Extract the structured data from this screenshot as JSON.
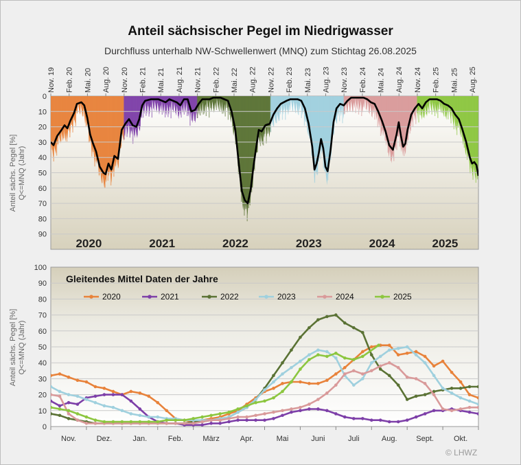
{
  "title": "Anteil sächsischer Pegel im Niedrigwasser",
  "subtitle": "Durchfluss unterhalb NW-Schwellenwert (MNQ) zum Stichtag 26.08.2025",
  "credit": "© LHWZ",
  "colors": {
    "2020": "#e8823a",
    "2021": "#7d3fa8",
    "2022": "#5a7234",
    "2023": "#9fd0de",
    "2024": "#d99a9a",
    "2025": "#8cc63f",
    "history_line": "#000000",
    "hint": "#aaaaaa"
  },
  "chart_data": [
    {
      "type": "area",
      "name": "history",
      "ylabel": "Anteil sächs. Pegel [%]\nQ<=MNQ (Jahr)",
      "yticks": [
        "0",
        "10",
        "20",
        "30",
        "40",
        "50",
        "60",
        "70",
        "80",
        "90"
      ],
      "ylim": [
        0,
        100
      ],
      "y_inverted": true,
      "xlim": [
        2019.833,
        2025.667
      ],
      "xtick_labels": [
        "Nov. 19",
        "Feb. 20",
        "Mai. 20",
        "Aug. 20",
        "Nov. 20",
        "Feb. 21",
        "Mai. 21",
        "Aug. 21",
        "Nov. 21",
        "Feb. 22",
        "Mai. 22",
        "Aug. 22",
        "Nov. 22",
        "Feb. 23",
        "Mai. 23",
        "Aug. 23",
        "Nov. 23",
        "Feb. 24",
        "Mai. 24",
        "Aug. 24",
        "Nov. 24",
        "Feb. 25",
        "Mai. 25",
        "Aug. 25"
      ],
      "year_bands": [
        {
          "year": "2020",
          "start": 2019.833,
          "end": 2020.833
        },
        {
          "year": "2021",
          "start": 2020.833,
          "end": 2021.833
        },
        {
          "year": "2022",
          "start": 2021.833,
          "end": 2022.833
        },
        {
          "year": "2023",
          "start": 2022.833,
          "end": 2023.833
        },
        {
          "year": "2024",
          "start": 2023.833,
          "end": 2024.833
        },
        {
          "year": "2025",
          "start": 2024.833,
          "end": 2025.667
        }
      ],
      "year_labels": [
        "2020",
        "2021",
        "2022",
        "2023",
        "2024",
        "2025"
      ],
      "line_points": [
        [
          2019.833,
          30
        ],
        [
          2019.87,
          32
        ],
        [
          2019.92,
          26
        ],
        [
          2019.98,
          22
        ],
        [
          2020.02,
          19
        ],
        [
          2020.06,
          21
        ],
        [
          2020.1,
          16
        ],
        [
          2020.15,
          11
        ],
        [
          2020.19,
          5
        ],
        [
          2020.25,
          4
        ],
        [
          2020.29,
          6
        ],
        [
          2020.33,
          14
        ],
        [
          2020.37,
          25
        ],
        [
          2020.41,
          31
        ],
        [
          2020.45,
          36
        ],
        [
          2020.5,
          46
        ],
        [
          2020.55,
          50
        ],
        [
          2020.58,
          51
        ],
        [
          2020.62,
          44
        ],
        [
          2020.66,
          48
        ],
        [
          2020.7,
          39
        ],
        [
          2020.75,
          41
        ],
        [
          2020.8,
          22
        ],
        [
          2020.85,
          18
        ],
        [
          2020.9,
          15
        ],
        [
          2020.95,
          19
        ],
        [
          2021.0,
          20
        ],
        [
          2021.04,
          15
        ],
        [
          2021.08,
          6
        ],
        [
          2021.12,
          3
        ],
        [
          2021.2,
          2
        ],
        [
          2021.3,
          2
        ],
        [
          2021.35,
          3
        ],
        [
          2021.4,
          4
        ],
        [
          2021.45,
          2
        ],
        [
          2021.5,
          3
        ],
        [
          2021.55,
          4
        ],
        [
          2021.6,
          6
        ],
        [
          2021.65,
          2
        ],
        [
          2021.7,
          2
        ],
        [
          2021.75,
          10
        ],
        [
          2021.8,
          9
        ],
        [
          2021.85,
          5
        ],
        [
          2021.9,
          2
        ],
        [
          2022.0,
          2
        ],
        [
          2022.05,
          1
        ],
        [
          2022.15,
          1
        ],
        [
          2022.2,
          2
        ],
        [
          2022.25,
          3
        ],
        [
          2022.3,
          10
        ],
        [
          2022.35,
          22
        ],
        [
          2022.4,
          45
        ],
        [
          2022.44,
          62
        ],
        [
          2022.48,
          68
        ],
        [
          2022.52,
          70
        ],
        [
          2022.56,
          61
        ],
        [
          2022.6,
          45
        ],
        [
          2022.63,
          35
        ],
        [
          2022.67,
          22
        ],
        [
          2022.71,
          23
        ],
        [
          2022.76,
          19
        ],
        [
          2022.82,
          18
        ],
        [
          2022.87,
          12
        ],
        [
          2022.92,
          8
        ],
        [
          2022.97,
          5
        ],
        [
          2023.05,
          3
        ],
        [
          2023.1,
          2
        ],
        [
          2023.2,
          2
        ],
        [
          2023.25,
          3
        ],
        [
          2023.3,
          8
        ],
        [
          2023.35,
          18
        ],
        [
          2023.4,
          33
        ],
        [
          2023.43,
          48
        ],
        [
          2023.46,
          44
        ],
        [
          2023.49,
          37
        ],
        [
          2023.52,
          28
        ],
        [
          2023.55,
          34
        ],
        [
          2023.58,
          46
        ],
        [
          2023.61,
          49
        ],
        [
          2023.65,
          35
        ],
        [
          2023.69,
          17
        ],
        [
          2023.73,
          8
        ],
        [
          2023.78,
          5
        ],
        [
          2023.83,
          6
        ],
        [
          2023.88,
          3
        ],
        [
          2023.93,
          1
        ],
        [
          2024.0,
          1
        ],
        [
          2024.1,
          1
        ],
        [
          2024.15,
          2
        ],
        [
          2024.2,
          4
        ],
        [
          2024.25,
          5
        ],
        [
          2024.3,
          10
        ],
        [
          2024.35,
          16
        ],
        [
          2024.4,
          23
        ],
        [
          2024.45,
          32
        ],
        [
          2024.5,
          35
        ],
        [
          2024.55,
          25
        ],
        [
          2024.58,
          17
        ],
        [
          2024.61,
          26
        ],
        [
          2024.64,
          33
        ],
        [
          2024.67,
          31
        ],
        [
          2024.7,
          22
        ],
        [
          2024.75,
          12
        ],
        [
          2024.8,
          8
        ],
        [
          2024.85,
          5
        ],
        [
          2024.9,
          8
        ],
        [
          2024.95,
          4
        ],
        [
          2025.0,
          2
        ],
        [
          2025.1,
          2
        ],
        [
          2025.15,
          3
        ],
        [
          2025.2,
          5
        ],
        [
          2025.25,
          6
        ],
        [
          2025.3,
          8
        ],
        [
          2025.35,
          12
        ],
        [
          2025.4,
          15
        ],
        [
          2025.45,
          22
        ],
        [
          2025.5,
          30
        ],
        [
          2025.55,
          40
        ],
        [
          2025.58,
          44
        ],
        [
          2025.61,
          43
        ],
        [
          2025.64,
          45
        ],
        [
          2025.667,
          52
        ]
      ]
    },
    {
      "type": "line",
      "name": "rolling-mean",
      "title": "Gleitendes Mittel Daten der Jahre",
      "ylabel": "Anteil sächs. Pegel [%]\nQ<=MNQ (Jahr)",
      "yticks": [
        "0",
        "10",
        "20",
        "30",
        "40",
        "50",
        "60",
        "70",
        "80",
        "90",
        "100"
      ],
      "ylim": [
        0,
        100
      ],
      "xlim": [
        0,
        12
      ],
      "categories": [
        "Nov.",
        "Dez.",
        "Jan.",
        "Feb.",
        "März",
        "Apr.",
        "Mai",
        "Juni",
        "Juli",
        "Aug.",
        "Sept.",
        "Okt."
      ],
      "series": [
        {
          "name": "2020",
          "x": [
            0,
            0.25,
            0.5,
            0.75,
            1,
            1.25,
            1.5,
            1.75,
            2,
            2.25,
            2.5,
            2.75,
            3,
            3.25,
            3.5,
            3.75,
            4,
            4.25,
            4.5,
            4.75,
            5,
            5.25,
            5.5,
            5.75,
            6,
            6.25,
            6.5,
            6.75,
            7,
            7.25,
            7.5,
            7.75,
            8,
            8.25,
            8.5,
            8.75,
            9,
            9.25,
            9.5,
            9.75,
            10,
            10.25,
            10.5,
            10.75,
            11,
            11.25,
            11.5,
            11.75,
            12
          ],
          "y": [
            32,
            33,
            31,
            29,
            28,
            25,
            24,
            22,
            20,
            22,
            21,
            19,
            15,
            10,
            5,
            4,
            3,
            4,
            5,
            6,
            8,
            10,
            14,
            18,
            22,
            24,
            27,
            28,
            28,
            27,
            27,
            29,
            33,
            37,
            42,
            47,
            50,
            51,
            51,
            45,
            46,
            47,
            44,
            38,
            41,
            34,
            28,
            20,
            18
          ]
        },
        {
          "name": "2021",
          "x": [
            0,
            0.25,
            0.5,
            0.75,
            1,
            1.25,
            1.5,
            1.75,
            2,
            2.25,
            2.5,
            2.75,
            3,
            3.25,
            3.5,
            3.75,
            4,
            4.25,
            4.5,
            4.75,
            5,
            5.25,
            5.5,
            5.75,
            6,
            6.25,
            6.5,
            6.75,
            7,
            7.25,
            7.5,
            7.75,
            8,
            8.25,
            8.5,
            8.75,
            9,
            9.25,
            9.5,
            9.75,
            10,
            10.25,
            10.5,
            10.75,
            11,
            11.25,
            11.5,
            11.75,
            12
          ],
          "y": [
            16,
            13,
            15,
            14,
            18,
            19,
            20,
            20,
            20,
            16,
            11,
            6,
            3,
            2,
            2,
            1,
            1,
            1,
            2,
            2,
            3,
            4,
            4,
            4,
            4,
            5,
            7,
            9,
            10,
            11,
            11,
            10,
            8,
            6,
            5,
            5,
            4,
            4,
            3,
            3,
            4,
            6,
            8,
            10,
            10,
            11,
            10,
            9,
            8
          ]
        },
        {
          "name": "2022",
          "x": [
            0,
            0.25,
            0.5,
            0.75,
            1,
            1.25,
            1.5,
            1.75,
            2,
            2.25,
            2.5,
            2.75,
            3,
            3.25,
            3.5,
            3.75,
            4,
            4.25,
            4.5,
            4.75,
            5,
            5.25,
            5.5,
            5.75,
            6,
            6.25,
            6.5,
            6.75,
            7,
            7.25,
            7.5,
            7.75,
            8,
            8.25,
            8.5,
            8.75,
            9,
            9.25,
            9.5,
            9.75,
            10,
            10.25,
            10.5,
            10.75,
            11,
            11.25,
            11.5,
            11.75,
            12
          ],
          "y": [
            8,
            7,
            5,
            4,
            3,
            2,
            2,
            2,
            2,
            2,
            2,
            2,
            2,
            2,
            2,
            2,
            3,
            3,
            4,
            4,
            6,
            9,
            12,
            17,
            24,
            32,
            40,
            48,
            56,
            62,
            67,
            69,
            70,
            65,
            62,
            59,
            45,
            36,
            32,
            26,
            17,
            19,
            20,
            22,
            23,
            24,
            24,
            25,
            25
          ]
        },
        {
          "name": "2023",
          "x": [
            0,
            0.25,
            0.5,
            0.75,
            1,
            1.25,
            1.5,
            1.75,
            2,
            2.25,
            2.5,
            2.75,
            3,
            3.25,
            3.5,
            3.75,
            4,
            4.25,
            4.5,
            4.75,
            5,
            5.25,
            5.5,
            5.75,
            6,
            6.25,
            6.5,
            6.75,
            7,
            7.25,
            7.5,
            7.75,
            8,
            8.25,
            8.5,
            8.75,
            9,
            9.25,
            9.5,
            9.75,
            10,
            10.25,
            10.5,
            10.75,
            11,
            11.25,
            11.5,
            11.75,
            12
          ],
          "y": [
            25,
            22,
            20,
            19,
            17,
            15,
            13,
            12,
            10,
            8,
            7,
            6,
            6,
            5,
            5,
            4,
            4,
            4,
            4,
            5,
            6,
            9,
            12,
            17,
            23,
            28,
            33,
            37,
            41,
            45,
            48,
            47,
            43,
            32,
            26,
            30,
            40,
            44,
            48,
            49,
            50,
            45,
            40,
            32,
            24,
            21,
            18,
            16,
            14
          ]
        },
        {
          "name": "2024",
          "x": [
            0,
            0.25,
            0.5,
            0.75,
            1,
            1.25,
            1.5,
            1.75,
            2,
            2.25,
            2.5,
            2.75,
            3,
            3.25,
            3.5,
            3.75,
            4,
            4.25,
            4.5,
            4.75,
            5,
            5.25,
            5.5,
            5.75,
            6,
            6.25,
            6.5,
            6.75,
            7,
            7.25,
            7.5,
            7.75,
            8,
            8.25,
            8.5,
            8.75,
            9,
            9.25,
            9.5,
            9.75,
            10,
            10.25,
            10.5,
            10.75,
            11,
            11.25,
            11.5,
            11.75,
            12
          ],
          "y": [
            20,
            19,
            8,
            4,
            2,
            2,
            2,
            2,
            2,
            2,
            2,
            2,
            2,
            2,
            2,
            2,
            2,
            3,
            4,
            4,
            5,
            6,
            6,
            7,
            8,
            9,
            10,
            11,
            12,
            14,
            17,
            21,
            26,
            33,
            35,
            33,
            35,
            38,
            40,
            37,
            31,
            30,
            27,
            20,
            11,
            10,
            11,
            12,
            12
          ]
        },
        {
          "name": "2025",
          "x": [
            0,
            0.25,
            0.5,
            0.75,
            1,
            1.25,
            1.5,
            1.75,
            2,
            2.25,
            2.5,
            2.75,
            3,
            3.25,
            3.5,
            3.75,
            4,
            4.25,
            4.5,
            4.75,
            5,
            5.25,
            5.5,
            5.75,
            6,
            6.25,
            6.5,
            6.75,
            7,
            7.25,
            7.5,
            7.75,
            8,
            8.25,
            8.5,
            8.75,
            9.2
          ],
          "y": [
            12,
            11,
            10,
            8,
            6,
            4,
            3,
            3,
            3,
            3,
            3,
            3,
            3,
            4,
            4,
            4,
            5,
            6,
            7,
            8,
            9,
            11,
            13,
            15,
            16,
            18,
            22,
            28,
            36,
            42,
            45,
            44,
            46,
            43,
            42,
            44,
            51
          ]
        }
      ]
    }
  ]
}
